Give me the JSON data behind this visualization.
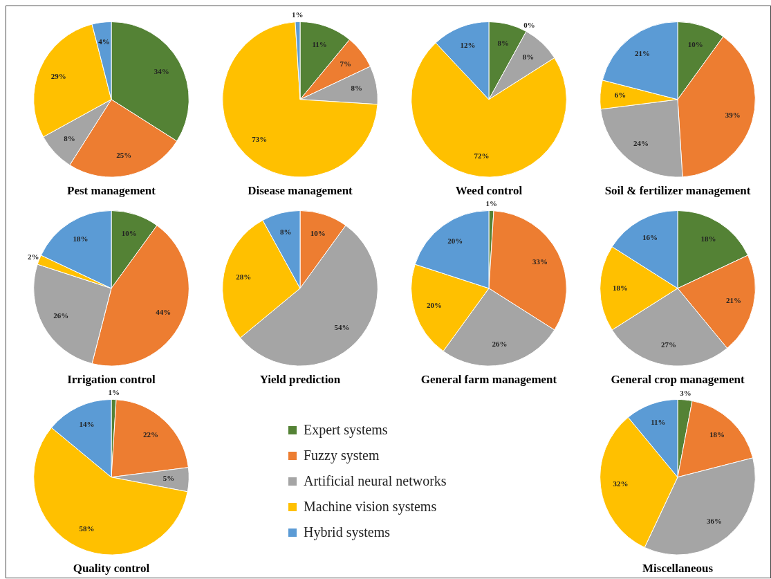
{
  "chart_data": [
    {
      "type": "pie",
      "title": "Pest management",
      "categories": [
        null,
        null,
        null,
        null,
        null
      ],
      "values": [
        34,
        25,
        8,
        29,
        4
      ],
      "value_labels": [
        "34%",
        "25%",
        "8%",
        "29%",
        "4%"
      ],
      "colors": [
        "#548235",
        "#ed7d31",
        "#a5a5a5",
        "#ffc000",
        "#5b9bd5"
      ]
    },
    {
      "type": "pie",
      "title": "Disease management",
      "categories": [
        null,
        null,
        null,
        null,
        null
      ],
      "values": [
        11,
        7,
        8,
        73,
        1
      ],
      "value_labels": [
        "11%",
        "7%",
        "8%",
        "73%",
        "1%"
      ],
      "colors": [
        "#548235",
        "#ed7d31",
        "#a5a5a5",
        "#ffc000",
        "#5b9bd5"
      ]
    },
    {
      "type": "pie",
      "title": "Weed control",
      "categories": [
        null,
        null,
        null,
        null,
        null
      ],
      "values": [
        8,
        0,
        8,
        72,
        12
      ],
      "value_labels": [
        "8%",
        "0%",
        "8%",
        "72%",
        "12%"
      ],
      "colors": [
        "#548235",
        "#ed7d31",
        "#a5a5a5",
        "#ffc000",
        "#5b9bd5"
      ]
    },
    {
      "type": "pie",
      "title": "Soil & fertilizer management",
      "categories": [
        null,
        null,
        null,
        null,
        null
      ],
      "values": [
        10,
        39,
        24,
        6,
        21
      ],
      "value_labels": [
        "10%",
        "39%",
        "24%",
        "6%",
        "21%"
      ],
      "colors": [
        "#548235",
        "#ed7d31",
        "#a5a5a5",
        "#ffc000",
        "#5b9bd5"
      ]
    },
    {
      "type": "pie",
      "title": "Irrigation control",
      "categories": [
        null,
        null,
        null,
        null,
        null
      ],
      "values": [
        10,
        44,
        26,
        2,
        18
      ],
      "value_labels": [
        "10%",
        "44%",
        "26%",
        "2%",
        "18%"
      ],
      "colors": [
        "#548235",
        "#ed7d31",
        "#a5a5a5",
        "#ffc000",
        "#5b9bd5"
      ]
    },
    {
      "type": "pie",
      "title": "Yield prediction",
      "categories": [
        null,
        null,
        null,
        null,
        null
      ],
      "values": [
        null,
        10,
        54,
        28,
        8
      ],
      "value_labels": [
        null,
        "10%",
        "54%",
        "28%",
        "8%"
      ],
      "colors": [
        "#548235",
        "#ed7d31",
        "#a5a5a5",
        "#ffc000",
        "#5b9bd5"
      ]
    },
    {
      "type": "pie",
      "title": "General farm management",
      "categories": [
        null,
        null,
        null,
        null,
        null
      ],
      "values": [
        1,
        33,
        26,
        20,
        20
      ],
      "value_labels": [
        "1%",
        "33%",
        "26%",
        "20%",
        "20%"
      ],
      "colors": [
        "#548235",
        "#ed7d31",
        "#a5a5a5",
        "#ffc000",
        "#5b9bd5"
      ]
    },
    {
      "type": "pie",
      "title": "General crop management",
      "categories": [
        null,
        null,
        null,
        null,
        null
      ],
      "values": [
        18,
        21,
        27,
        18,
        16
      ],
      "value_labels": [
        "18%",
        "21%",
        "27%",
        "18%",
        "16%"
      ],
      "colors": [
        "#548235",
        "#ed7d31",
        "#a5a5a5",
        "#ffc000",
        "#5b9bd5"
      ]
    },
    {
      "type": "pie",
      "title": "Quality control",
      "categories": [
        "Expert systems",
        "Fuzzy system",
        "Artificial neural networks",
        "Machine vision systems",
        "Hybrid systems"
      ],
      "values": [
        1,
        22,
        5,
        58,
        14
      ],
      "value_labels": [
        "1%",
        "22%",
        "5%",
        "58%",
        "14%"
      ],
      "colors": [
        "#548235",
        "#ed7d31",
        "#a5a5a5",
        "#ffc000",
        "#5b9bd5"
      ],
      "legend": "right"
    },
    {
      "type": "pie",
      "title": "Miscellaneous",
      "categories": [
        null,
        null,
        null,
        null,
        null
      ],
      "values": [
        3,
        18,
        36,
        32,
        11
      ],
      "value_labels": [
        "3%",
        "18%",
        "36%",
        "32%",
        "11%"
      ],
      "colors": [
        "#548235",
        "#ed7d31",
        "#a5a5a5",
        "#ffc000",
        "#5b9bd5"
      ]
    }
  ]
}
